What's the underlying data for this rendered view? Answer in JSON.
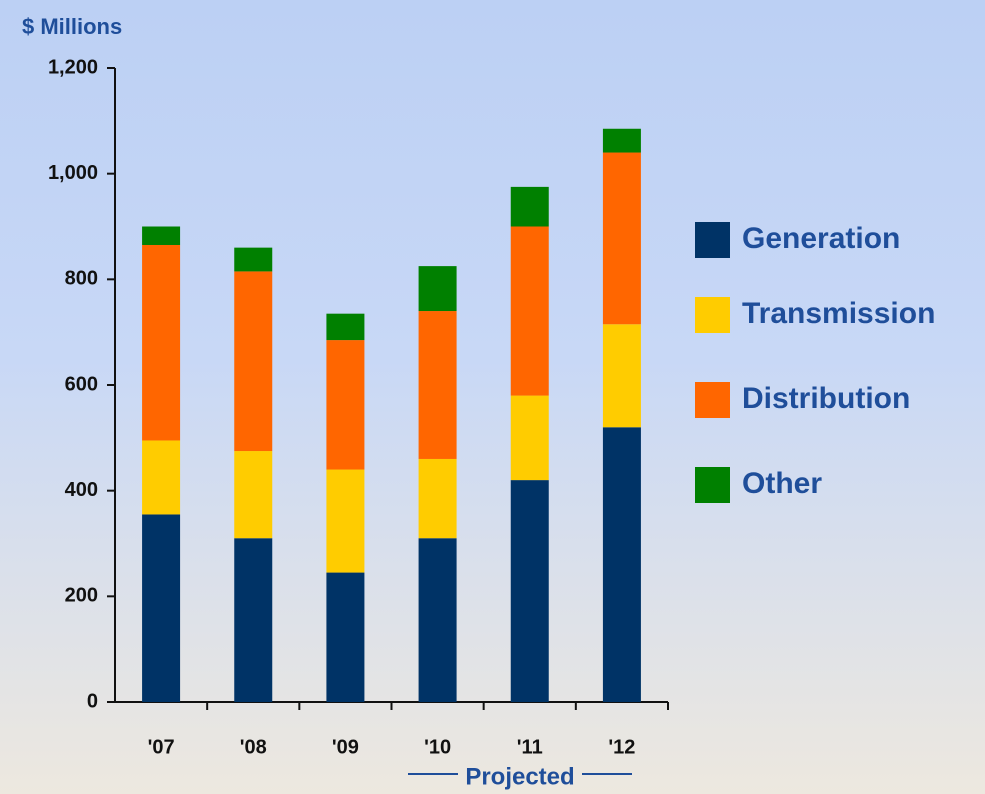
{
  "chart_data": {
    "type": "stacked_bar",
    "y_axis_label": "$ Millions",
    "categories": [
      "'07",
      "'08",
      "'09",
      "'10",
      "'11",
      "'12"
    ],
    "series": [
      {
        "name": "Generation",
        "color": "#003366",
        "values": [
          355,
          310,
          245,
          310,
          420,
          520
        ]
      },
      {
        "name": "Transmission",
        "color": "#ffcc00",
        "values": [
          140,
          165,
          195,
          150,
          160,
          195
        ]
      },
      {
        "name": "Distribution",
        "color": "#ff6600",
        "values": [
          370,
          340,
          245,
          280,
          320,
          325
        ]
      },
      {
        "name": "Other",
        "color": "#008000",
        "values": [
          35,
          45,
          50,
          85,
          75,
          45
        ]
      }
    ],
    "ylim": [
      0,
      1200
    ],
    "yticks": [
      0,
      200,
      400,
      600,
      800,
      {
        "value": 1000,
        "label": "1,000"
      },
      {
        "value": 1200,
        "label": "1,200"
      }
    ],
    "annotation": "Projected",
    "legend": "right"
  }
}
